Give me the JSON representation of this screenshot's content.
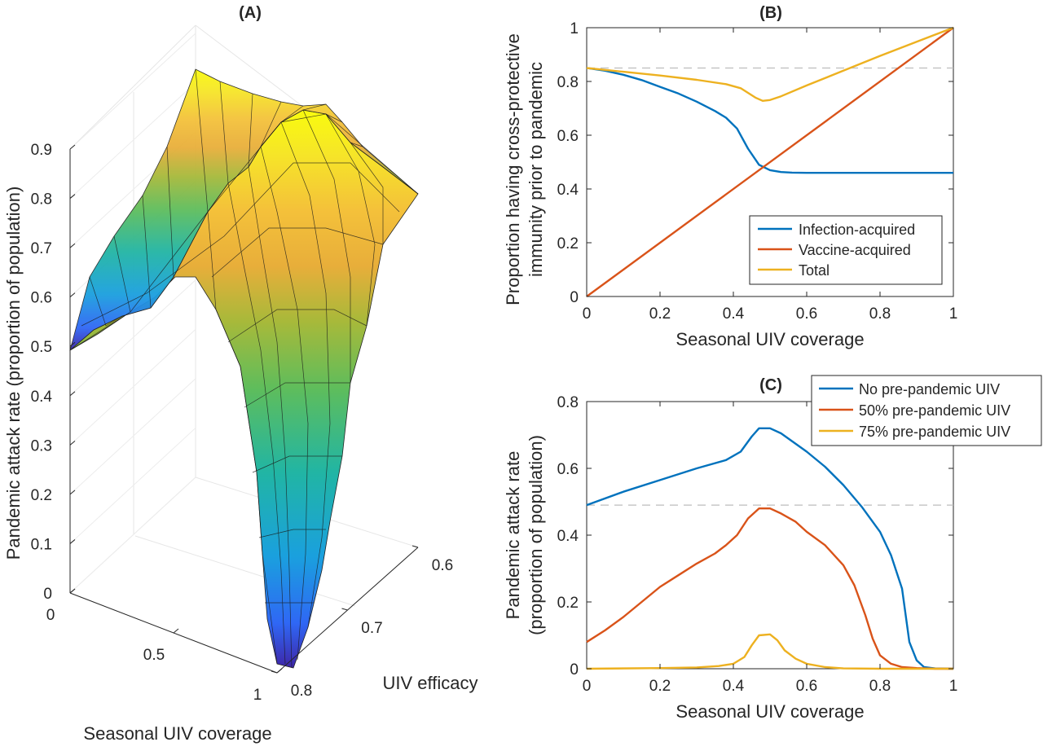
{
  "colors": {
    "blue": "#0072BD",
    "orange": "#D95319",
    "yellow": "#EDB120",
    "ref_line": "#bdbdbd",
    "axis": "#262626"
  },
  "chart_data": [
    {
      "id": "A",
      "type": "surface",
      "title": "(A)",
      "x_axis_label": "Seasonal UIV coverage",
      "y_axis_label": "UIV efficacy",
      "z_axis_label": "Pandemic attack rate (proportion of population)",
      "x_ticks": [
        "0",
        "0.5",
        "1"
      ],
      "y_ticks": [
        "0.6",
        "0.7",
        "0.8"
      ],
      "z_ticks": [
        "0",
        "0.1",
        "0.2",
        "0.3",
        "0.4",
        "0.5",
        "0.6",
        "0.7",
        "0.8",
        "0.9"
      ],
      "xlim": [
        0,
        1
      ],
      "ylim": [
        0.6,
        0.8
      ],
      "zlim": [
        0,
        0.9
      ],
      "colormap": "parula",
      "grid": true,
      "description_points": [
        {
          "coverage": 0,
          "efficacy": 0.8,
          "attack_rate": 0.49
        },
        {
          "coverage": 0,
          "efficacy": 0.6,
          "attack_rate": 0.79
        },
        {
          "coverage": 0.47,
          "efficacy": 0.6,
          "attack_rate": 0.9
        },
        {
          "coverage": 1,
          "efficacy": 0.6,
          "attack_rate": 0.79
        },
        {
          "coverage": 1,
          "efficacy": 0.8,
          "attack_rate": 0.0
        }
      ]
    },
    {
      "id": "B",
      "type": "line",
      "title": "(B)",
      "xlabel": "Seasonal UIV coverage",
      "ylabel_lines": [
        "Proportion having cross-protective",
        "immunity prior to pandemic"
      ],
      "xlim": [
        0,
        1
      ],
      "ylim": [
        0,
        1
      ],
      "x_ticks": [
        0,
        0.2,
        0.4,
        0.6,
        0.8,
        1
      ],
      "x_tick_labels": [
        "0",
        "0.2",
        "0.4",
        "0.6",
        "0.8",
        "1"
      ],
      "y_ticks": [
        0,
        0.2,
        0.4,
        0.6,
        0.8,
        1
      ],
      "y_tick_labels": [
        "0",
        "0.2",
        "0.4",
        "0.6",
        "0.8",
        "1"
      ],
      "reference_line": 0.85,
      "legend_position": "bottom-right",
      "series": [
        {
          "name": "Infection-acquired",
          "color": "#0072BD",
          "x": [
            0,
            0.05,
            0.1,
            0.15,
            0.2,
            0.25,
            0.3,
            0.35,
            0.38,
            0.41,
            0.44,
            0.47,
            0.5,
            0.53,
            0.56,
            0.6,
            0.7,
            0.8,
            0.9,
            1.0
          ],
          "y": [
            0.85,
            0.84,
            0.825,
            0.805,
            0.78,
            0.755,
            0.725,
            0.69,
            0.665,
            0.625,
            0.55,
            0.49,
            0.47,
            0.463,
            0.461,
            0.46,
            0.46,
            0.46,
            0.46,
            0.46
          ]
        },
        {
          "name": "Vaccine-acquired",
          "color": "#D95319",
          "x": [
            0,
            1
          ],
          "y": [
            0,
            1
          ]
        },
        {
          "name": "Total",
          "color": "#EDB120",
          "x": [
            0,
            0.1,
            0.2,
            0.3,
            0.38,
            0.42,
            0.46,
            0.48,
            0.5,
            0.53,
            0.6,
            0.7,
            0.8,
            0.9,
            1.0
          ],
          "y": [
            0.85,
            0.836,
            0.822,
            0.806,
            0.79,
            0.775,
            0.74,
            0.728,
            0.731,
            0.745,
            0.785,
            0.84,
            0.895,
            0.948,
            1.0
          ]
        }
      ]
    },
    {
      "id": "C",
      "type": "line",
      "title": "(C)",
      "xlabel": "Seasonal UIV coverage",
      "ylabel_lines": [
        "Pandemic attack rate",
        "(proportion of population)"
      ],
      "xlim": [
        0,
        1
      ],
      "ylim": [
        0,
        0.8
      ],
      "x_ticks": [
        0,
        0.2,
        0.4,
        0.6,
        0.8,
        1
      ],
      "x_tick_labels": [
        "0",
        "0.2",
        "0.4",
        "0.6",
        "0.8",
        "1"
      ],
      "y_ticks": [
        0,
        0.2,
        0.4,
        0.6,
        0.8
      ],
      "y_tick_labels": [
        "0",
        "0.2",
        "0.4",
        "0.6",
        "0.8"
      ],
      "reference_line": 0.49,
      "legend_position": "top-right",
      "series": [
        {
          "name": "No pre-pandemic UIV",
          "color": "#0072BD",
          "x": [
            0,
            0.1,
            0.2,
            0.3,
            0.38,
            0.42,
            0.45,
            0.47,
            0.5,
            0.53,
            0.6,
            0.65,
            0.7,
            0.75,
            0.8,
            0.83,
            0.86,
            0.88,
            0.9,
            0.92,
            0.95,
            1.0
          ],
          "y": [
            0.49,
            0.53,
            0.565,
            0.6,
            0.625,
            0.65,
            0.695,
            0.72,
            0.72,
            0.705,
            0.65,
            0.605,
            0.55,
            0.485,
            0.41,
            0.34,
            0.24,
            0.08,
            0.025,
            0.005,
            0.001,
            0.0
          ]
        },
        {
          "name": "50% pre-pandemic UIV",
          "color": "#D95319",
          "x": [
            0,
            0.05,
            0.1,
            0.15,
            0.2,
            0.25,
            0.3,
            0.35,
            0.38,
            0.41,
            0.44,
            0.47,
            0.5,
            0.53,
            0.57,
            0.6,
            0.65,
            0.7,
            0.73,
            0.76,
            0.78,
            0.8,
            0.83,
            0.86,
            0.9,
            0.95,
            1.0
          ],
          "y": [
            0.08,
            0.115,
            0.155,
            0.2,
            0.245,
            0.28,
            0.315,
            0.345,
            0.37,
            0.4,
            0.45,
            0.48,
            0.48,
            0.465,
            0.44,
            0.41,
            0.37,
            0.31,
            0.25,
            0.16,
            0.09,
            0.04,
            0.015,
            0.005,
            0.002,
            0.0,
            0.0
          ]
        },
        {
          "name": "75% pre-pandemic UIV",
          "color": "#EDB120",
          "x": [
            0,
            0.2,
            0.3,
            0.36,
            0.4,
            0.43,
            0.45,
            0.47,
            0.5,
            0.52,
            0.54,
            0.57,
            0.6,
            0.65,
            0.7,
            0.8,
            1.0
          ],
          "y": [
            0.0,
            0.002,
            0.004,
            0.008,
            0.015,
            0.035,
            0.07,
            0.1,
            0.103,
            0.085,
            0.055,
            0.03,
            0.015,
            0.005,
            0.001,
            0.0,
            0.0
          ]
        }
      ]
    }
  ]
}
